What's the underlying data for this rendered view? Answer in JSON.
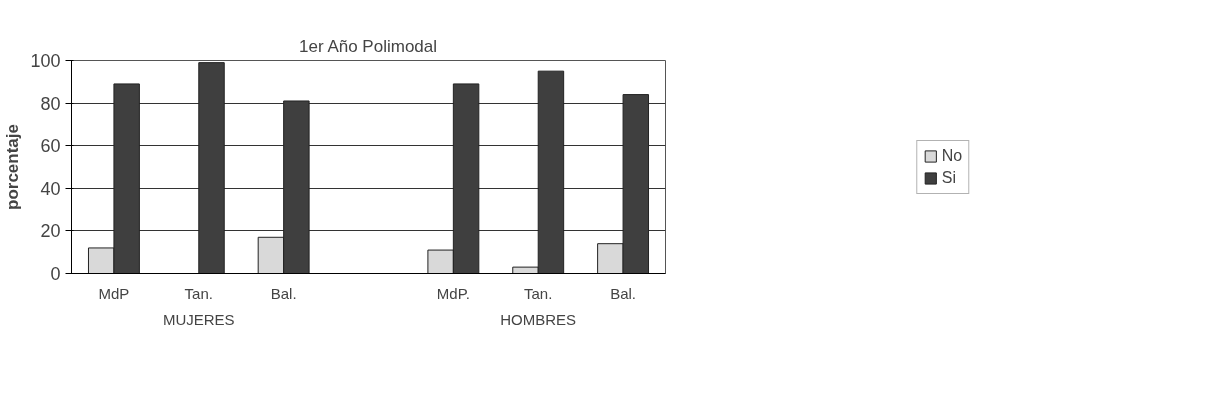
{
  "chart_data": {
    "type": "bar",
    "title": "1er Año Polimodal",
    "ylabel": "porcentaje",
    "categories": [
      "MdP",
      "Tan.",
      "Bal.",
      null,
      "MdP.",
      "Tan.",
      "Bal."
    ],
    "series": [
      {
        "name": "No",
        "color": "#d9d9d9",
        "values": [
          12,
          0,
          17,
          null,
          11,
          3,
          14
        ]
      },
      {
        "name": "Si",
        "color": "#3f3f3f",
        "values": [
          89,
          99,
          81,
          null,
          89,
          95,
          84
        ]
      }
    ],
    "annotations": [
      "MUJERES",
      "HOMBRES"
    ],
    "ylim": [
      0,
      100
    ],
    "yticks": [
      0,
      20,
      40,
      60,
      80,
      100
    ],
    "grid": "y",
    "legend": "right"
  }
}
